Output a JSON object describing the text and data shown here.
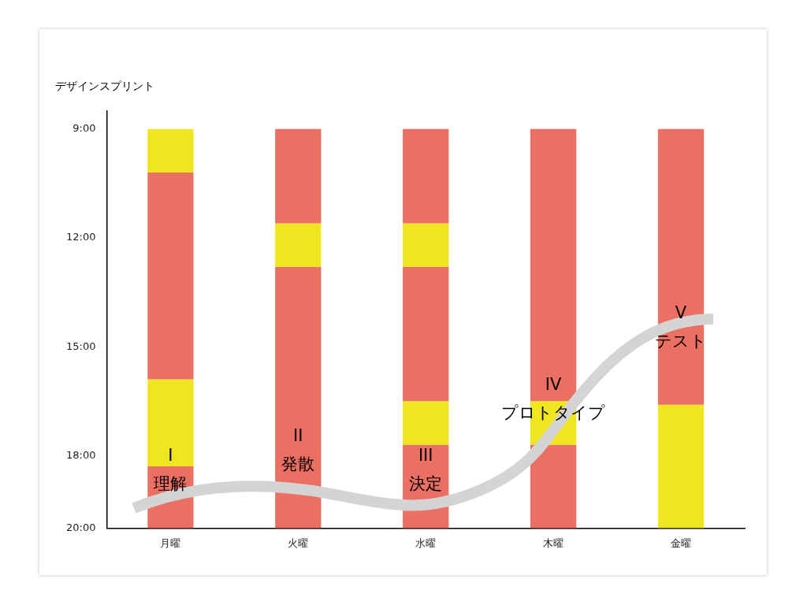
{
  "chart_data": {
    "type": "bar",
    "title": "デザインスプリント",
    "categories": [
      "月曜",
      "火曜",
      "水曜",
      "木曜",
      "金曜"
    ],
    "series": [
      {
        "base": [
          9,
          9,
          9,
          9,
          9
        ],
        "values": [
          1.2,
          2.6,
          2.6,
          7.5,
          7.6
        ],
        "colors": [
          "#efe61f",
          "#eb6f63",
          "#eb6f63",
          "#eb6f63",
          "#eb6f63"
        ]
      },
      {
        "base": [
          10.2,
          11.6,
          11.6,
          16.5,
          16.6
        ],
        "values": [
          5.7,
          1.2,
          1.2,
          1.2,
          3.4
        ],
        "colors": [
          "#eb6f63",
          "#efe61f",
          "#efe61f",
          "#efe61f",
          "#efe61f"
        ]
      },
      {
        "base": [
          15.9,
          12.8,
          12.8,
          17.7,
          null
        ],
        "values": [
          2.4,
          7.2,
          3.7,
          2.3,
          null
        ],
        "colors": [
          "#efe61f",
          "#eb6f63",
          "#eb6f63",
          "#eb6f63",
          "#eb6f63"
        ]
      },
      {
        "base": [
          18.3,
          null,
          16.5,
          null,
          null
        ],
        "values": [
          1.7,
          null,
          1.2,
          null,
          null
        ],
        "colors": [
          "#eb6f63",
          "#eb6f63",
          "#efe61f",
          "#eb6f63",
          "#eb6f63"
        ]
      },
      {
        "base": [
          null,
          null,
          17.7,
          null,
          null
        ],
        "values": [
          null,
          null,
          2.3,
          null,
          null
        ],
        "colors": [
          "#eb6f63",
          "#eb6f63",
          "#eb6f63",
          "#eb6f63",
          "#eb6f63"
        ]
      }
    ],
    "ylim": [
      20,
      8.5
    ],
    "yticks": [
      {
        "value": 9,
        "label": "9:00"
      },
      {
        "value": 12,
        "label": "12:00"
      },
      {
        "value": 15,
        "label": "15:00"
      },
      {
        "value": 18,
        "label": "18:00"
      },
      {
        "value": 20,
        "label": "20:00"
      }
    ],
    "grid": false,
    "legend": false,
    "annotations": [
      "I\n理解",
      "II\n発散",
      "III\n決定",
      "IV\nプロトタイプ",
      "V\nテスト"
    ]
  }
}
